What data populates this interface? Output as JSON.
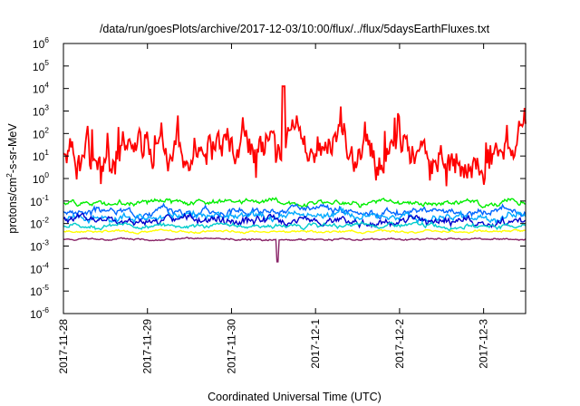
{
  "chart_data": {
    "type": "line",
    "title": "/data/run/goesPlots/archive/2017-12-03/10:00/flux/../flux/5daysEarthFluxes.txt",
    "xlabel": "Coordinated Universal Time (UTC)",
    "ylabel": {
      "base": "protons/cm",
      "sup": "2",
      "rest": "-s-sr-MeV"
    },
    "x_range_days": [
      "2017-11-28",
      "2017-12-03 12:00"
    ],
    "x_ticks": [
      "2017-11-28",
      "2017-11-29",
      "2017-11-30",
      "2017-12-1",
      "2017-12-2",
      "2017-12-3"
    ],
    "y_scale": "log",
    "ylim": [
      1e-06,
      1000000.0
    ],
    "y_ticks": [
      {
        "base": "10",
        "exp": "-6"
      },
      {
        "base": "10",
        "exp": "-5"
      },
      {
        "base": "10",
        "exp": "-4"
      },
      {
        "base": "10",
        "exp": "-3"
      },
      {
        "base": "10",
        "exp": "-2"
      },
      {
        "base": "10",
        "exp": "-1"
      },
      {
        "base": "10",
        "exp": "0"
      },
      {
        "base": "10",
        "exp": "1"
      },
      {
        "base": "10",
        "exp": "2"
      },
      {
        "base": "10",
        "exp": "3"
      },
      {
        "base": "10",
        "exp": "4"
      },
      {
        "base": "10",
        "exp": "5"
      },
      {
        "base": "10",
        "exp": "6"
      }
    ],
    "grid": false,
    "legend": "none",
    "series": [
      {
        "color": "#ff0000",
        "level": 15,
        "spread": 1.1,
        "seed": 1
      },
      {
        "color": "#00ee00",
        "level": 0.09,
        "spread": 0.15,
        "seed": 2
      },
      {
        "color": "#0066ff",
        "level": 0.035,
        "spread": 0.2,
        "seed": 3
      },
      {
        "color": "#00aaff",
        "level": 0.02,
        "spread": 0.2,
        "seed": 4
      },
      {
        "color": "#0000cc",
        "level": 0.013,
        "spread": 0.22,
        "seed": 5
      },
      {
        "color": "#00cccc",
        "level": 0.008,
        "spread": 0.12,
        "seed": 6
      },
      {
        "color": "#ffff00",
        "level": 0.0045,
        "spread": 0.06,
        "seed": 7
      },
      {
        "color": "#882266",
        "level": 0.002,
        "spread": 0.05,
        "seed": 8
      }
    ]
  }
}
